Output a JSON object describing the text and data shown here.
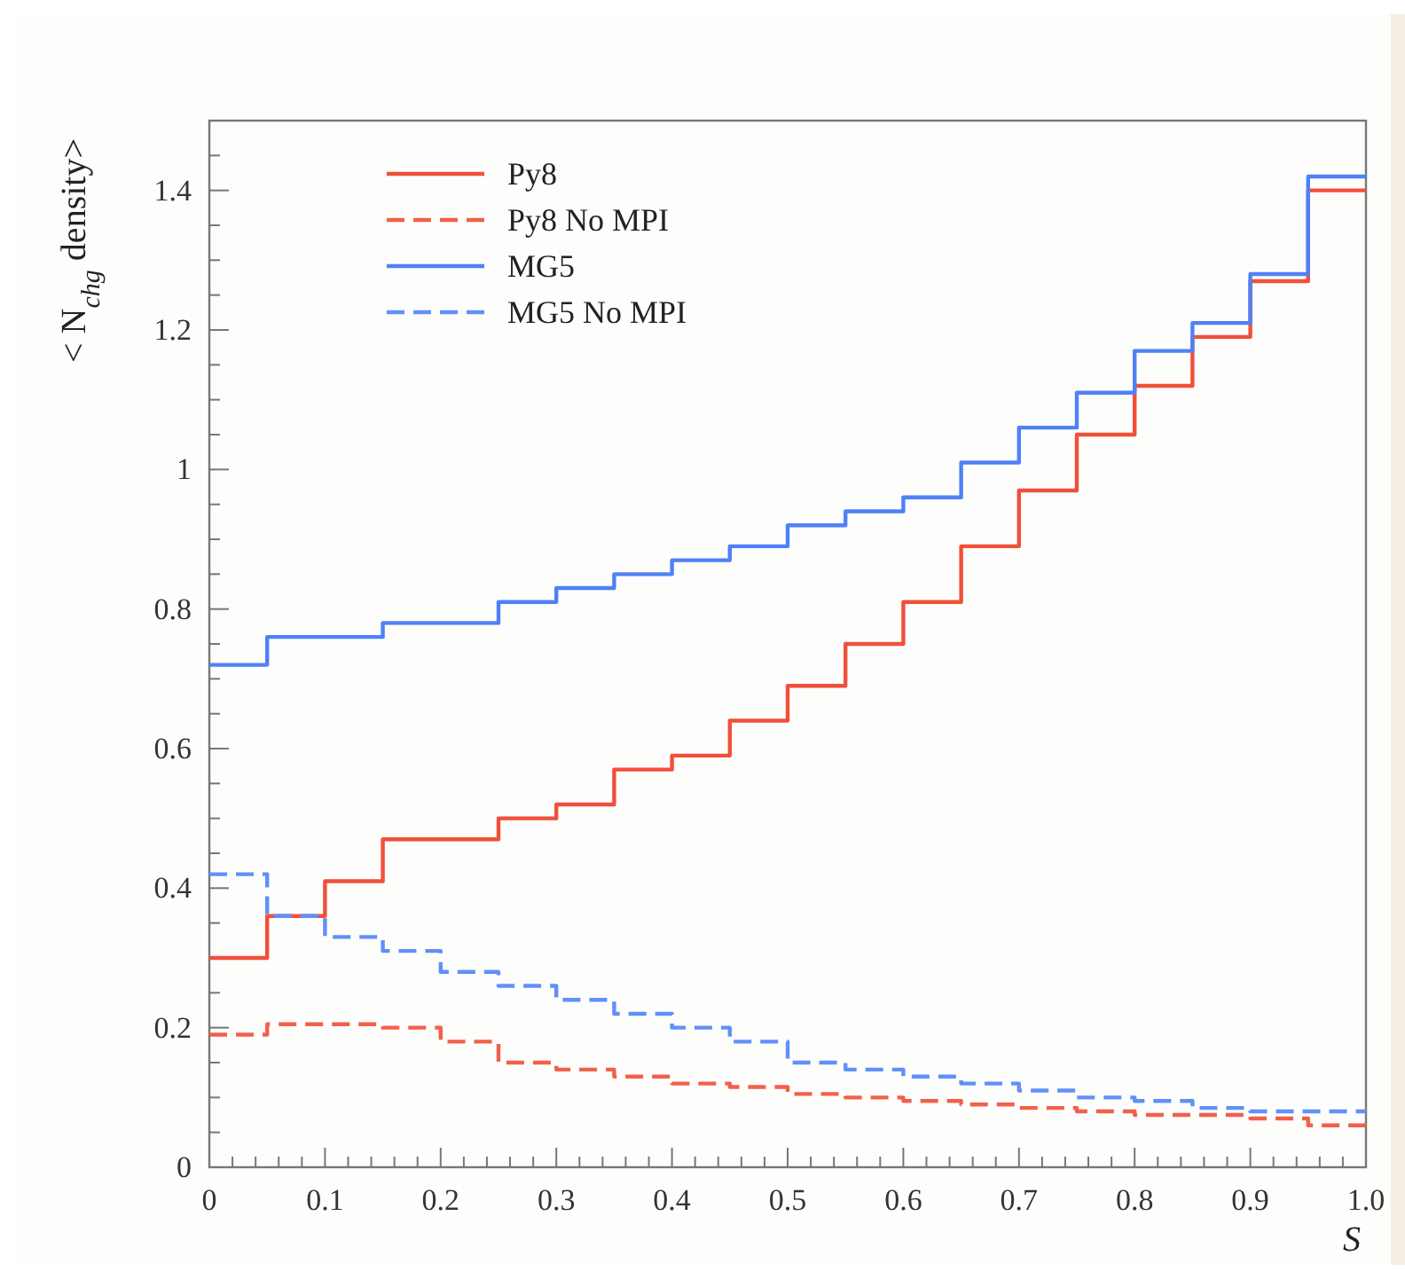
{
  "chart_data": {
    "type": "histogram",
    "xlabel": "S",
    "ylabel": "< N$_{chg}$ density>",
    "bins": [
      0,
      0.05,
      0.1,
      0.15,
      0.2,
      0.25,
      0.3,
      0.35,
      0.4,
      0.45,
      0.5,
      0.55,
      0.6,
      0.65,
      0.7,
      0.75,
      0.8,
      0.85,
      0.9,
      0.95,
      1.0
    ],
    "series": [
      {
        "name": "Py8",
        "color": "#f0503a",
        "line_style": "solid",
        "values": [
          0.3,
          0.36,
          0.41,
          0.47,
          0.47,
          0.5,
          0.52,
          0.57,
          0.59,
          0.64,
          0.69,
          0.75,
          0.81,
          0.89,
          0.97,
          1.05,
          1.12,
          1.19,
          1.27,
          1.4
        ]
      },
      {
        "name": "Py8 No MPI",
        "color": "#f2604a",
        "line_style": "dashed",
        "values": [
          0.19,
          0.205,
          0.205,
          0.2,
          0.18,
          0.15,
          0.14,
          0.13,
          0.12,
          0.115,
          0.105,
          0.1,
          0.095,
          0.09,
          0.085,
          0.08,
          0.075,
          0.075,
          0.07,
          0.06
        ]
      },
      {
        "name": "MG5",
        "color": "#5080f8",
        "line_style": "solid",
        "values": [
          0.72,
          0.76,
          0.76,
          0.78,
          0.78,
          0.81,
          0.83,
          0.85,
          0.87,
          0.89,
          0.92,
          0.94,
          0.96,
          1.01,
          1.06,
          1.11,
          1.17,
          1.21,
          1.28,
          1.42
        ]
      },
      {
        "name": "MG5 No MPI",
        "color": "#6090f8",
        "line_style": "dashed",
        "values": [
          0.42,
          0.36,
          0.33,
          0.31,
          0.28,
          0.26,
          0.24,
          0.22,
          0.2,
          0.18,
          0.15,
          0.14,
          0.13,
          0.12,
          0.11,
          0.1,
          0.095,
          0.085,
          0.08,
          0.08
        ]
      }
    ],
    "xlim": [
      0,
      1
    ],
    "ylim": [
      0,
      1.5
    ],
    "xticks": [
      0,
      {
        "value": 0.02,
        "label": null
      },
      {
        "value": 0.04,
        "label": null
      },
      {
        "value": 0.06,
        "label": null
      },
      {
        "value": 0.08,
        "label": null
      },
      0.1,
      {
        "value": 0.12,
        "label": null
      },
      {
        "value": 0.14,
        "label": null
      },
      {
        "value": 0.16,
        "label": null
      },
      {
        "value": 0.18,
        "label": null
      },
      0.2,
      {
        "value": 0.22,
        "label": null
      },
      {
        "value": 0.24,
        "label": null
      },
      {
        "value": 0.26,
        "label": null
      },
      {
        "value": 0.28,
        "label": null
      },
      0.3,
      {
        "value": 0.32,
        "label": null
      },
      {
        "value": 0.34,
        "label": null
      },
      {
        "value": 0.36,
        "label": null
      },
      {
        "value": 0.38,
        "label": null
      },
      0.4,
      {
        "value": 0.42,
        "label": null
      },
      {
        "value": 0.44,
        "label": null
      },
      {
        "value": 0.46,
        "label": null
      },
      {
        "value": 0.48,
        "label": null
      },
      0.5,
      {
        "value": 0.52,
        "label": null
      },
      {
        "value": 0.54,
        "label": null
      },
      {
        "value": 0.56,
        "label": null
      },
      {
        "value": 0.58,
        "label": null
      },
      0.6,
      {
        "value": 0.62,
        "label": null
      },
      {
        "value": 0.64,
        "label": null
      },
      {
        "value": 0.66,
        "label": null
      },
      {
        "value": 0.68,
        "label": null
      },
      0.7,
      {
        "value": 0.72,
        "label": null
      },
      {
        "value": 0.74,
        "label": null
      },
      {
        "value": 0.76,
        "label": null
      },
      {
        "value": 0.78,
        "label": null
      },
      0.8,
      {
        "value": 0.82,
        "label": null
      },
      {
        "value": 0.84,
        "label": null
      },
      {
        "value": 0.86,
        "label": null
      },
      {
        "value": 0.88,
        "label": null
      },
      0.9,
      {
        "value": 0.92,
        "label": null
      },
      {
        "value": 0.94,
        "label": null
      },
      {
        "value": 0.96,
        "label": null
      },
      {
        "value": 0.98,
        "label": null
      },
      {
        "value": 1.0,
        "label": "1.0"
      }
    ],
    "yticks": [
      0,
      {
        "value": 0.05,
        "label": null
      },
      {
        "value": 0.1,
        "label": null
      },
      {
        "value": 0.15,
        "label": null
      },
      0.2,
      {
        "value": 0.25,
        "label": null
      },
      {
        "value": 0.3,
        "label": null
      },
      {
        "value": 0.35,
        "label": null
      },
      0.4,
      {
        "value": 0.45,
        "label": null
      },
      {
        "value": 0.5,
        "label": null
      },
      {
        "value": 0.55,
        "label": null
      },
      0.6,
      {
        "value": 0.65,
        "label": null
      },
      {
        "value": 0.7,
        "label": null
      },
      {
        "value": 0.75,
        "label": null
      },
      0.8,
      {
        "value": 0.85,
        "label": null
      },
      {
        "value": 0.9,
        "label": null
      },
      {
        "value": 0.95,
        "label": null
      },
      1,
      {
        "value": 1.05,
        "label": null
      },
      {
        "value": 1.1,
        "label": null
      },
      {
        "value": 1.15,
        "label": null
      },
      1.2,
      {
        "value": 1.25,
        "label": null
      },
      {
        "value": 1.3,
        "label": null
      },
      {
        "value": 1.35,
        "label": null
      },
      1.4,
      {
        "value": 1.45,
        "label": null
      },
      {
        "value": 1.5,
        "label": null
      }
    ],
    "grid": false,
    "legend": "top left"
  }
}
